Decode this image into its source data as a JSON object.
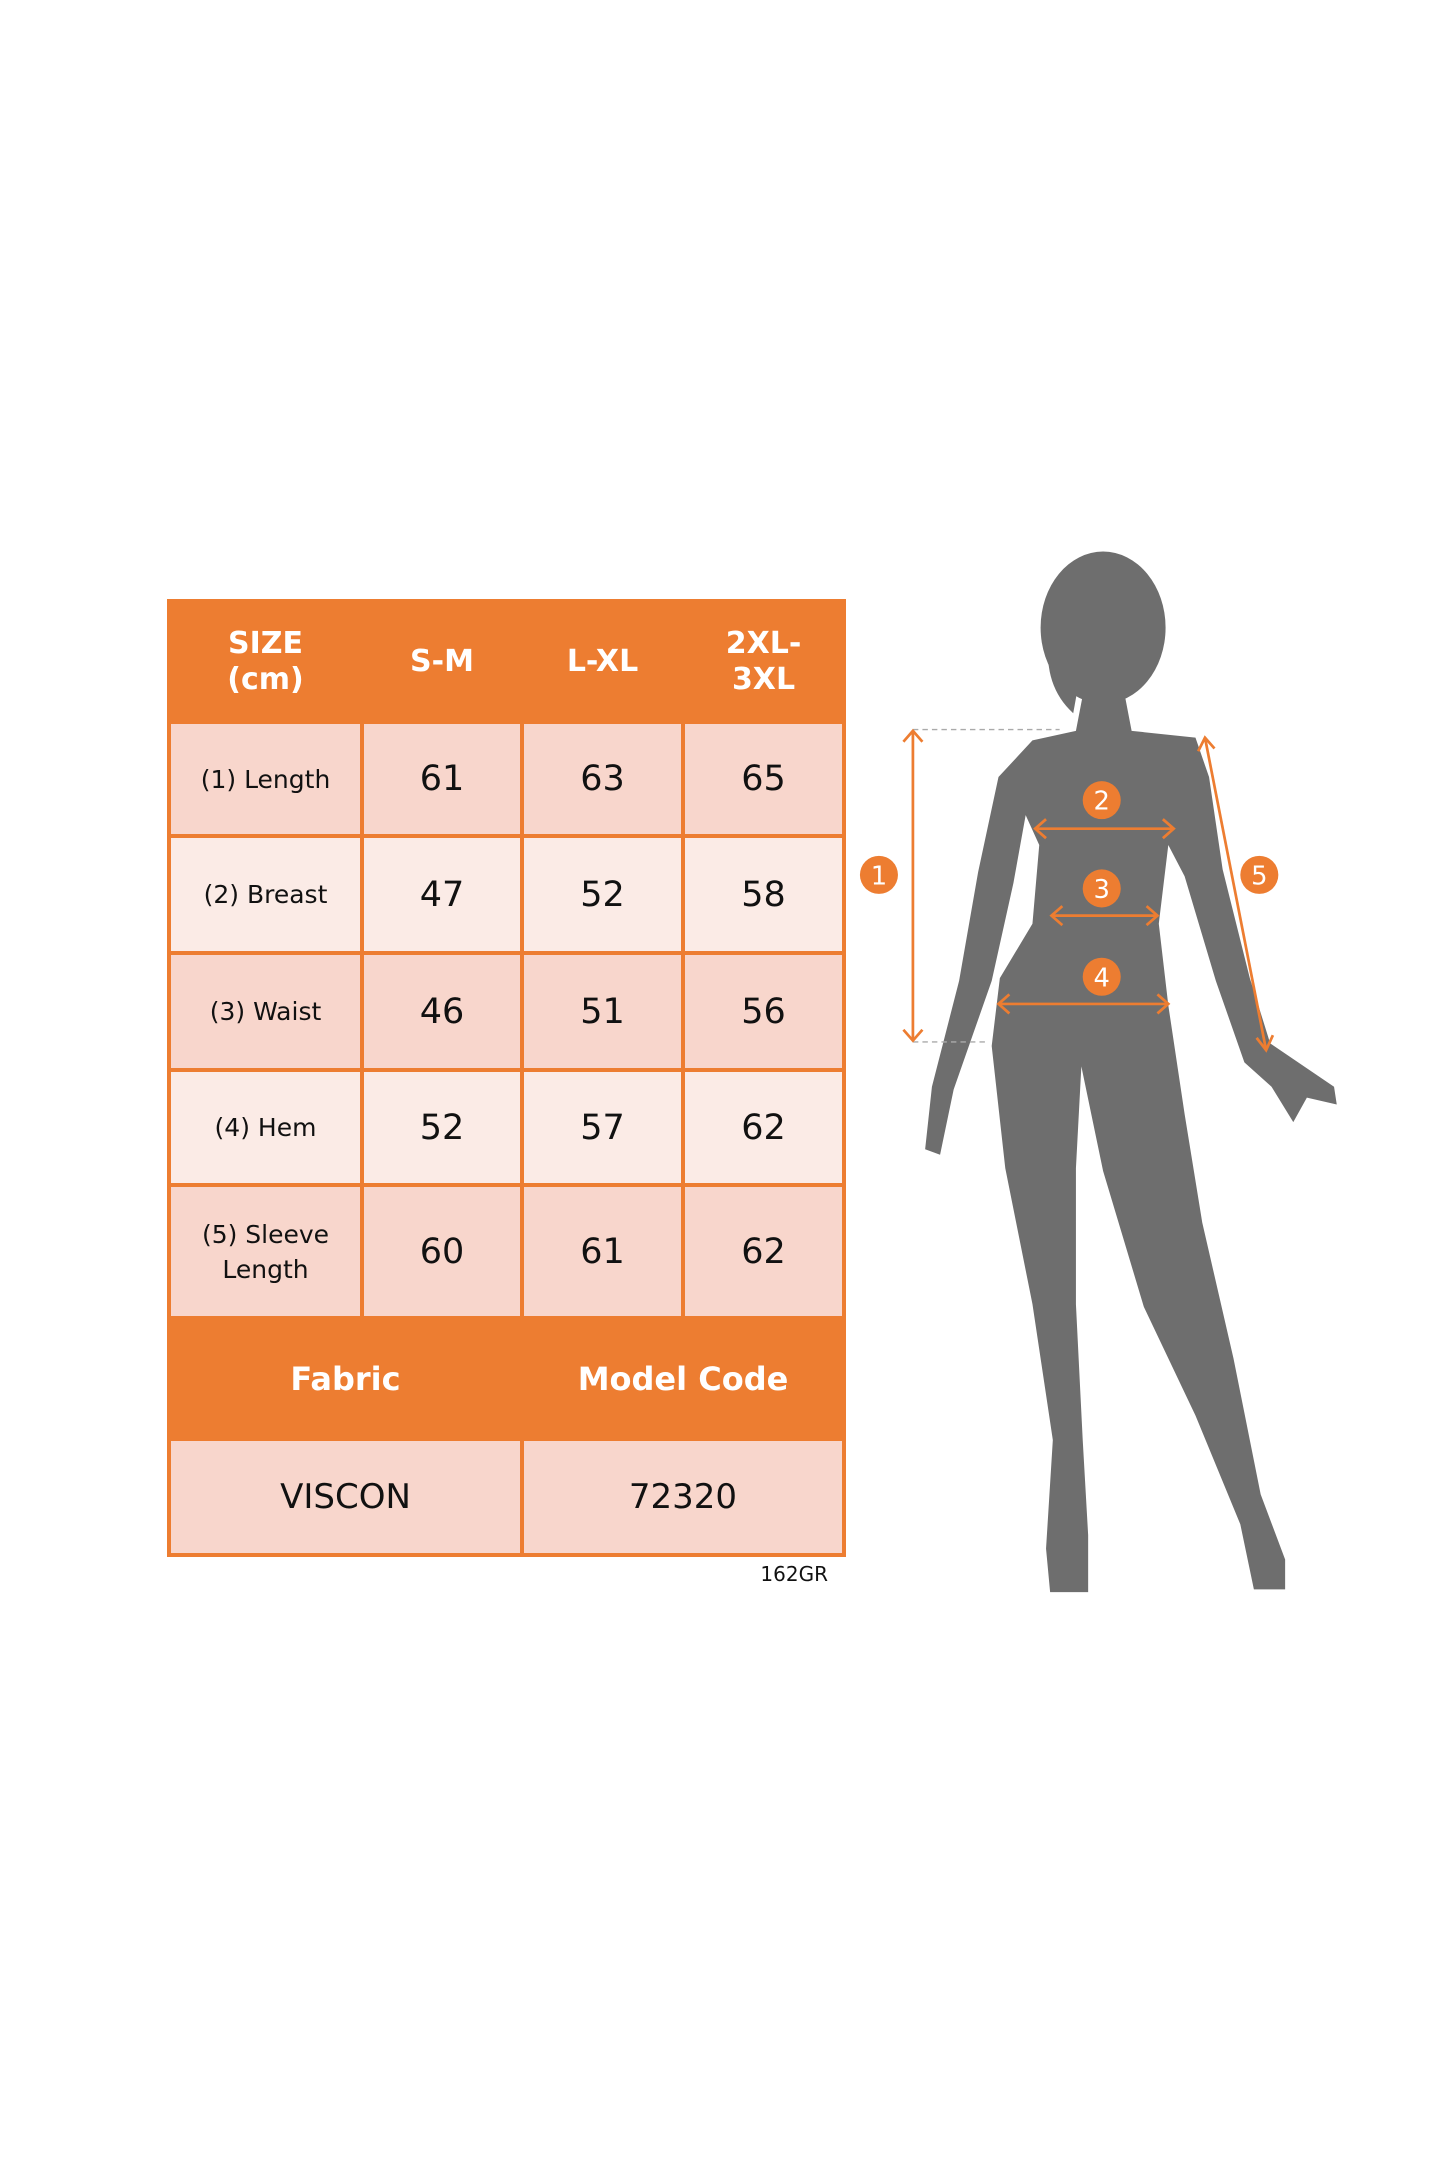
{
  "table": {
    "header": {
      "size_label": "SIZE (cm)",
      "sizes": [
        "S-M",
        "L-XL",
        "2XL-3XL"
      ]
    },
    "rows": [
      {
        "label": "(1) Length",
        "values": [
          "61",
          "63",
          "65"
        ]
      },
      {
        "label": "(2) Breast",
        "values": [
          "47",
          "52",
          "58"
        ]
      },
      {
        "label": "(3) Waist",
        "values": [
          "46",
          "51",
          "56"
        ]
      },
      {
        "label": "(4) Hem",
        "values": [
          "52",
          "57",
          "62"
        ]
      },
      {
        "label": "(5) Sleeve Length",
        "values": [
          "60",
          "61",
          "62"
        ]
      }
    ],
    "footer": {
      "fabric_label": "Fabric",
      "model_code_label": "Model Code",
      "fabric_value": "VISCON",
      "model_code_value": "72320"
    }
  },
  "reference_code": "162GR",
  "figure": {
    "markers": [
      "1",
      "2",
      "3",
      "4",
      "5"
    ],
    "colors": {
      "accent": "#ED7D31",
      "silhouette": "#6E6E6E",
      "row_dark": "#F8D6CC",
      "row_light": "#FBEBE6"
    }
  }
}
